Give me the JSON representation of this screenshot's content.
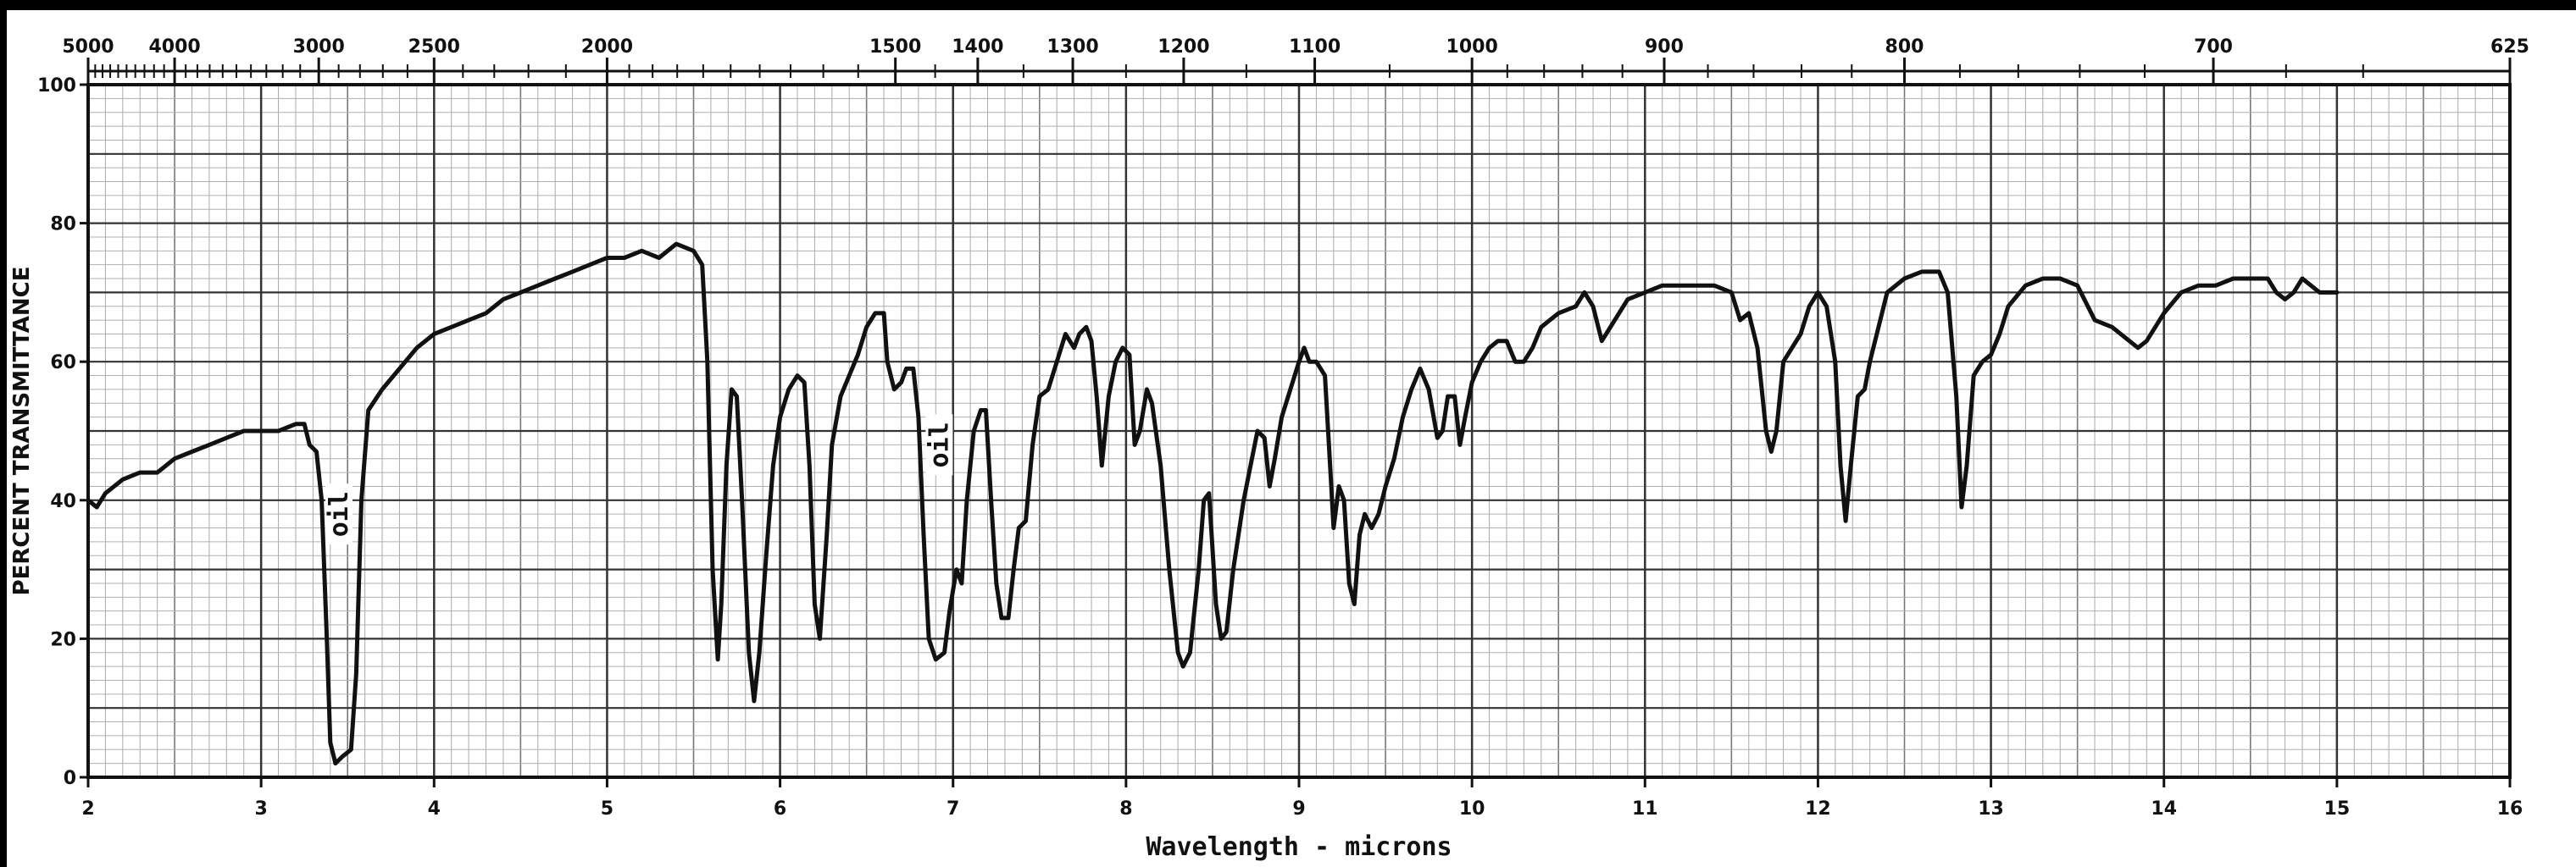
{
  "chart_data": {
    "type": "line",
    "title": "",
    "xlabel": "Wavelength - microns",
    "ylabel": "PERCENT TRANSMITTANCE",
    "xlim": [
      2,
      16
    ],
    "ylim": [
      0,
      100
    ],
    "grid": true,
    "x_ticks": [
      "2",
      "3",
      "4",
      "5",
      "6",
      "7",
      "8",
      "9",
      "10",
      "11",
      "12",
      "13",
      "14",
      "15",
      "16"
    ],
    "y_ticks": [
      "0",
      "20",
      "40",
      "60",
      "80",
      "100"
    ],
    "top_axis_label": "",
    "top_ticks": [
      {
        "label": "5000",
        "cm": 5000
      },
      {
        "label": "4000",
        "cm": 4000
      },
      {
        "label": "3000",
        "cm": 3000
      },
      {
        "label": "2500",
        "cm": 2500
      },
      {
        "label": "2000",
        "cm": 2000
      },
      {
        "label": "1500",
        "cm": 1500
      },
      {
        "label": "1400",
        "cm": 1400
      },
      {
        "label": "1300",
        "cm": 1300
      },
      {
        "label": "1200",
        "cm": 1200
      },
      {
        "label": "1100",
        "cm": 1100
      },
      {
        "label": "1000",
        "cm": 1000
      },
      {
        "label": "900",
        "cm": 900
      },
      {
        "label": "800",
        "cm": 800
      },
      {
        "label": "700",
        "cm": 700
      },
      {
        "label": "625",
        "cm": 625
      }
    ],
    "annotations": [
      {
        "text": "oil",
        "x": 3.45,
        "y": 38
      },
      {
        "text": "oil",
        "x": 6.92,
        "y": 48
      }
    ],
    "series": [
      {
        "line_color": "#111111",
        "points": [
          [
            2.0,
            40
          ],
          [
            2.05,
            39
          ],
          [
            2.1,
            41
          ],
          [
            2.2,
            43
          ],
          [
            2.3,
            44
          ],
          [
            2.4,
            44
          ],
          [
            2.5,
            46
          ],
          [
            2.6,
            47
          ],
          [
            2.7,
            48
          ],
          [
            2.8,
            49
          ],
          [
            2.9,
            50
          ],
          [
            3.0,
            50
          ],
          [
            3.1,
            50
          ],
          [
            3.2,
            51
          ],
          [
            3.25,
            51
          ],
          [
            3.28,
            48
          ],
          [
            3.32,
            47
          ],
          [
            3.35,
            40
          ],
          [
            3.38,
            20
          ],
          [
            3.4,
            5
          ],
          [
            3.43,
            2
          ],
          [
            3.47,
            3
          ],
          [
            3.52,
            4
          ],
          [
            3.55,
            15
          ],
          [
            3.58,
            40
          ],
          [
            3.62,
            53
          ],
          [
            3.7,
            56
          ],
          [
            3.8,
            59
          ],
          [
            3.9,
            62
          ],
          [
            4.0,
            64
          ],
          [
            4.1,
            65
          ],
          [
            4.2,
            66
          ],
          [
            4.3,
            67
          ],
          [
            4.4,
            69
          ],
          [
            4.5,
            70
          ],
          [
            4.6,
            71
          ],
          [
            4.7,
            72
          ],
          [
            4.8,
            73
          ],
          [
            4.9,
            74
          ],
          [
            5.0,
            75
          ],
          [
            5.1,
            75
          ],
          [
            5.2,
            76
          ],
          [
            5.3,
            75
          ],
          [
            5.4,
            77
          ],
          [
            5.5,
            76
          ],
          [
            5.55,
            74
          ],
          [
            5.58,
            60
          ],
          [
            5.61,
            30
          ],
          [
            5.64,
            17
          ],
          [
            5.66,
            25
          ],
          [
            5.69,
            45
          ],
          [
            5.72,
            56
          ],
          [
            5.75,
            55
          ],
          [
            5.78,
            40
          ],
          [
            5.82,
            18
          ],
          [
            5.85,
            11
          ],
          [
            5.88,
            18
          ],
          [
            5.92,
            32
          ],
          [
            5.96,
            45
          ],
          [
            6.0,
            52
          ],
          [
            6.05,
            56
          ],
          [
            6.1,
            58
          ],
          [
            6.14,
            57
          ],
          [
            6.17,
            45
          ],
          [
            6.2,
            25
          ],
          [
            6.23,
            20
          ],
          [
            6.27,
            35
          ],
          [
            6.3,
            48
          ],
          [
            6.35,
            55
          ],
          [
            6.4,
            58
          ],
          [
            6.45,
            61
          ],
          [
            6.5,
            65
          ],
          [
            6.55,
            67
          ],
          [
            6.6,
            67
          ],
          [
            6.62,
            60
          ],
          [
            6.66,
            56
          ],
          [
            6.7,
            57
          ],
          [
            6.73,
            59
          ],
          [
            6.77,
            59
          ],
          [
            6.8,
            52
          ],
          [
            6.83,
            35
          ],
          [
            6.86,
            20
          ],
          [
            6.9,
            17
          ],
          [
            6.95,
            18
          ],
          [
            6.98,
            24
          ],
          [
            7.02,
            30
          ],
          [
            7.05,
            28
          ],
          [
            7.08,
            40
          ],
          [
            7.12,
            50
          ],
          [
            7.16,
            53
          ],
          [
            7.19,
            53
          ],
          [
            7.22,
            40
          ],
          [
            7.25,
            28
          ],
          [
            7.28,
            23
          ],
          [
            7.32,
            23
          ],
          [
            7.35,
            30
          ],
          [
            7.38,
            36
          ],
          [
            7.42,
            37
          ],
          [
            7.46,
            48
          ],
          [
            7.5,
            55
          ],
          [
            7.55,
            56
          ],
          [
            7.6,
            60
          ],
          [
            7.65,
            64
          ],
          [
            7.7,
            62
          ],
          [
            7.73,
            64
          ],
          [
            7.77,
            65
          ],
          [
            7.8,
            63
          ],
          [
            7.83,
            55
          ],
          [
            7.86,
            45
          ],
          [
            7.9,
            55
          ],
          [
            7.94,
            60
          ],
          [
            7.98,
            62
          ],
          [
            8.02,
            61
          ],
          [
            8.05,
            48
          ],
          [
            8.08,
            50
          ],
          [
            8.12,
            56
          ],
          [
            8.15,
            54
          ],
          [
            8.2,
            45
          ],
          [
            8.25,
            30
          ],
          [
            8.3,
            18
          ],
          [
            8.33,
            16
          ],
          [
            8.37,
            18
          ],
          [
            8.42,
            30
          ],
          [
            8.45,
            40
          ],
          [
            8.48,
            41
          ],
          [
            8.52,
            25
          ],
          [
            8.55,
            20
          ],
          [
            8.58,
            21
          ],
          [
            8.62,
            30
          ],
          [
            8.68,
            40
          ],
          [
            8.72,
            45
          ],
          [
            8.76,
            50
          ],
          [
            8.8,
            49
          ],
          [
            8.83,
            42
          ],
          [
            8.86,
            46
          ],
          [
            8.9,
            52
          ],
          [
            8.95,
            56
          ],
          [
            9.0,
            60
          ],
          [
            9.03,
            62
          ],
          [
            9.06,
            60
          ],
          [
            9.1,
            60
          ],
          [
            9.15,
            58
          ],
          [
            9.18,
            45
          ],
          [
            9.2,
            36
          ],
          [
            9.23,
            42
          ],
          [
            9.26,
            40
          ],
          [
            9.29,
            28
          ],
          [
            9.32,
            25
          ],
          [
            9.35,
            35
          ],
          [
            9.38,
            38
          ],
          [
            9.42,
            36
          ],
          [
            9.46,
            38
          ],
          [
            9.5,
            42
          ],
          [
            9.55,
            46
          ],
          [
            9.6,
            52
          ],
          [
            9.65,
            56
          ],
          [
            9.7,
            59
          ],
          [
            9.75,
            56
          ],
          [
            9.8,
            49
          ],
          [
            9.83,
            50
          ],
          [
            9.86,
            55
          ],
          [
            9.9,
            55
          ],
          [
            9.93,
            48
          ],
          [
            9.96,
            52
          ],
          [
            10.0,
            57
          ],
          [
            10.05,
            60
          ],
          [
            10.1,
            62
          ],
          [
            10.15,
            63
          ],
          [
            10.2,
            63
          ],
          [
            10.25,
            60
          ],
          [
            10.3,
            60
          ],
          [
            10.35,
            62
          ],
          [
            10.4,
            65
          ],
          [
            10.5,
            67
          ],
          [
            10.6,
            68
          ],
          [
            10.65,
            70
          ],
          [
            10.7,
            68
          ],
          [
            10.75,
            63
          ],
          [
            10.8,
            65
          ],
          [
            10.85,
            67
          ],
          [
            10.9,
            69
          ],
          [
            11.0,
            70
          ],
          [
            11.1,
            71
          ],
          [
            11.2,
            71
          ],
          [
            11.3,
            71
          ],
          [
            11.4,
            71
          ],
          [
            11.5,
            70
          ],
          [
            11.55,
            66
          ],
          [
            11.6,
            67
          ],
          [
            11.65,
            62
          ],
          [
            11.7,
            50
          ],
          [
            11.73,
            47
          ],
          [
            11.76,
            50
          ],
          [
            11.8,
            60
          ],
          [
            11.85,
            62
          ],
          [
            11.9,
            64
          ],
          [
            11.95,
            68
          ],
          [
            12.0,
            70
          ],
          [
            12.05,
            68
          ],
          [
            12.1,
            60
          ],
          [
            12.13,
            45
          ],
          [
            12.16,
            37
          ],
          [
            12.19,
            45
          ],
          [
            12.23,
            55
          ],
          [
            12.27,
            56
          ],
          [
            12.3,
            60
          ],
          [
            12.35,
            65
          ],
          [
            12.4,
            70
          ],
          [
            12.5,
            72
          ],
          [
            12.6,
            73
          ],
          [
            12.7,
            73
          ],
          [
            12.75,
            70
          ],
          [
            12.8,
            55
          ],
          [
            12.83,
            39
          ],
          [
            12.86,
            45
          ],
          [
            12.9,
            58
          ],
          [
            12.95,
            60
          ],
          [
            13.0,
            61
          ],
          [
            13.05,
            64
          ],
          [
            13.1,
            68
          ],
          [
            13.2,
            71
          ],
          [
            13.3,
            72
          ],
          [
            13.4,
            72
          ],
          [
            13.5,
            71
          ],
          [
            13.6,
            66
          ],
          [
            13.7,
            65
          ],
          [
            13.8,
            63
          ],
          [
            13.85,
            62
          ],
          [
            13.9,
            63
          ],
          [
            14.0,
            67
          ],
          [
            14.1,
            70
          ],
          [
            14.2,
            71
          ],
          [
            14.3,
            71
          ],
          [
            14.4,
            72
          ],
          [
            14.5,
            72
          ],
          [
            14.6,
            72
          ],
          [
            14.65,
            70
          ],
          [
            14.7,
            69
          ],
          [
            14.75,
            70
          ],
          [
            14.8,
            72
          ],
          [
            14.85,
            71
          ],
          [
            14.9,
            70
          ],
          [
            15.0,
            70
          ]
        ]
      }
    ]
  }
}
